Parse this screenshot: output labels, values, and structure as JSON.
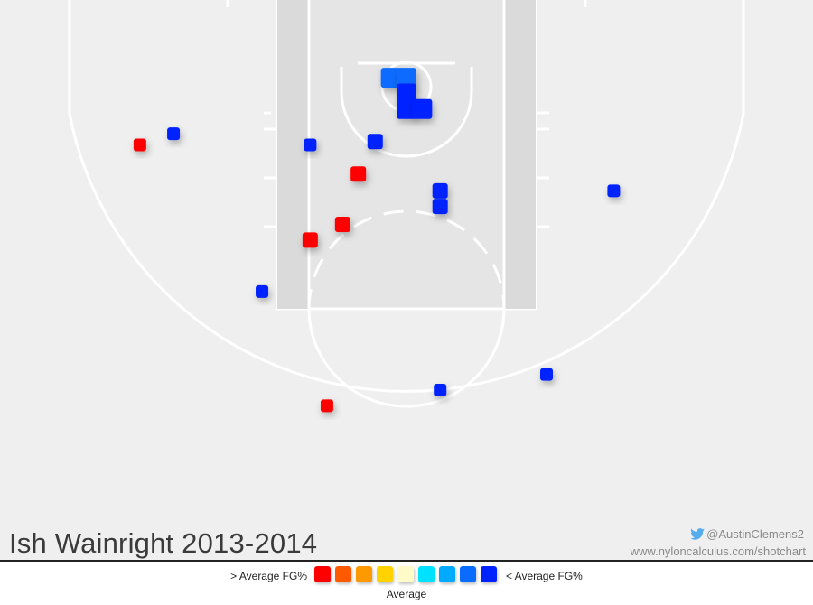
{
  "chart_data": {
    "type": "scatter",
    "title": "Ish Wainright 2013-2014",
    "legend": {
      "left_label": "> Average FG%",
      "right_label": "< Average FG%",
      "center_label": "Average",
      "scale_colors": [
        "#ff0000",
        "#ff5a00",
        "#ff9900",
        "#ffd200",
        "#fffbc8",
        "#00e1ff",
        "#00aaff",
        "#0a6cff",
        "#0022ff"
      ]
    },
    "units": "feet from basket (x: + toward right sideline, y: + away from baseline)",
    "xlim": [
      -25,
      25
    ],
    "ylim": [
      -5.25,
      31
    ],
    "shots": [
      {
        "x": -23.8,
        "y": 5.2,
        "category": "above",
        "size": "small"
      },
      {
        "x": -20.8,
        "y": 4.2,
        "category": "below",
        "size": "small"
      },
      {
        "x": -8.6,
        "y": 5.2,
        "category": "below",
        "size": "small"
      },
      {
        "x": -1.4,
        "y": -0.8,
        "category": "below_light",
        "size": "large"
      },
      {
        "x": 0.0,
        "y": -0.8,
        "category": "below_light",
        "size": "large"
      },
      {
        "x": 0.0,
        "y": 0.6,
        "category": "below",
        "size": "large"
      },
      {
        "x": 0.0,
        "y": 2.0,
        "category": "below",
        "size": "large"
      },
      {
        "x": 1.4,
        "y": 2.0,
        "category": "below",
        "size": "large"
      },
      {
        "x": -2.8,
        "y": 4.9,
        "category": "below",
        "size": "medium"
      },
      {
        "x": -4.3,
        "y": 7.8,
        "category": "above",
        "size": "medium"
      },
      {
        "x": 3.0,
        "y": 9.3,
        "category": "below",
        "size": "medium"
      },
      {
        "x": 3.0,
        "y": 10.7,
        "category": "below",
        "size": "medium"
      },
      {
        "x": -5.7,
        "y": 12.3,
        "category": "above",
        "size": "medium"
      },
      {
        "x": -8.6,
        "y": 13.7,
        "category": "above",
        "size": "medium"
      },
      {
        "x": 18.5,
        "y": 9.3,
        "category": "below",
        "size": "small"
      },
      {
        "x": -12.9,
        "y": 18.3,
        "category": "below",
        "size": "small"
      },
      {
        "x": 12.5,
        "y": 25.7,
        "category": "below",
        "size": "small"
      },
      {
        "x": 3.0,
        "y": 27.1,
        "category": "below",
        "size": "small"
      },
      {
        "x": -7.1,
        "y": 28.5,
        "category": "above",
        "size": "small"
      }
    ],
    "category_colors": {
      "above": "#ff0000",
      "below": "#0022ff",
      "below_light": "#0a6cff"
    }
  },
  "credits": {
    "twitter": "@AustinClemens2",
    "url": "www.nyloncalculus.com/shotchart"
  }
}
